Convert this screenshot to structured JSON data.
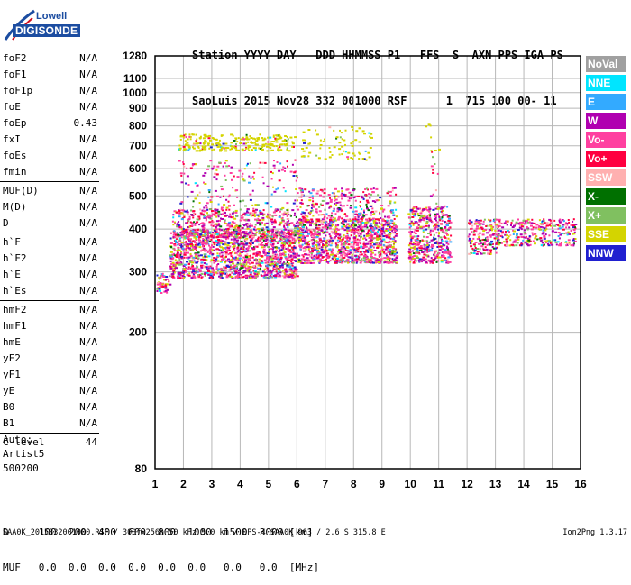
{
  "logo": {
    "line1": "Lowell",
    "line2": "DIGISONDE"
  },
  "header": {
    "line1": "Station YYYY DAY   DDD HHMMSS P1   FFS  S  AXN PPS IGA PS",
    "line2": "SaoLuis 2015 Nov28 332 001000 RSF      1  715 100 00- 11"
  },
  "params": {
    "group1": [
      {
        "name": "foF2",
        "value": "N/A"
      },
      {
        "name": "foF1",
        "value": "N/A"
      },
      {
        "name": "foF1p",
        "value": "N/A"
      },
      {
        "name": "foE",
        "value": "N/A"
      },
      {
        "name": "foEp",
        "value": "0.43"
      },
      {
        "name": "fxI",
        "value": "N/A"
      },
      {
        "name": "foEs",
        "value": "N/A"
      },
      {
        "name": "fmin",
        "value": "N/A"
      }
    ],
    "group2": [
      {
        "name": "MUF(D)",
        "value": "N/A"
      },
      {
        "name": "M(D)",
        "value": "N/A"
      },
      {
        "name": "D",
        "value": "N/A"
      }
    ],
    "group3": [
      {
        "name": "h`F",
        "value": "N/A"
      },
      {
        "name": "h`F2",
        "value": "N/A"
      },
      {
        "name": "h`E",
        "value": "N/A"
      },
      {
        "name": "h`Es",
        "value": "N/A"
      }
    ],
    "group4": [
      {
        "name": "hmF2",
        "value": "N/A"
      },
      {
        "name": "hmF1",
        "value": "N/A"
      },
      {
        "name": "hmE",
        "value": "N/A"
      },
      {
        "name": "yF2",
        "value": "N/A"
      },
      {
        "name": "yF1",
        "value": "N/A"
      },
      {
        "name": "yE",
        "value": "N/A"
      },
      {
        "name": "B0",
        "value": "N/A"
      },
      {
        "name": "B1",
        "value": "N/A"
      }
    ],
    "group5": [
      {
        "name": "C-level",
        "value": "44"
      }
    ]
  },
  "auto": {
    "label": "Auto:",
    "artist": "Artist5",
    "code": "500200"
  },
  "bottom": {
    "d_row": "D     100  200  400  600  800  1000  1500  3000 [km]",
    "muf_row": "MUF   0.0  0.0  0.0  0.0  0.0  0.0   0.0   0.0  [MHz]"
  },
  "footer": "SAA0K_2015332001000.RSF / 300fx256h 50 kHz 5.0 km / DPS-4 SAA0K 903 / 2.6 S 315.8 E",
  "version": "Ion2Png 1.3.17",
  "legend": [
    {
      "label": "NoVal",
      "color": "#a0a0a0"
    },
    {
      "label": "NNE",
      "color": "#00e5ff"
    },
    {
      "label": "E",
      "color": "#33aaff"
    },
    {
      "label": "W",
      "color": "#b000b0"
    },
    {
      "label": "Vo-",
      "color": "#ff40a0"
    },
    {
      "label": "Vo+",
      "color": "#ff0040"
    },
    {
      "label": "SSW",
      "color": "#ffb0b0"
    },
    {
      "label": "X-",
      "color": "#007000"
    },
    {
      "label": "X+",
      "color": "#80c060"
    },
    {
      "label": "SSE",
      "color": "#d4d400"
    },
    {
      "label": "NNW",
      "color": "#2020d0"
    }
  ],
  "chart_data": {
    "type": "scatter",
    "xlim": [
      1,
      16
    ],
    "ylim": [
      80,
      1280
    ],
    "y_scale": "log",
    "x_ticks": [
      1,
      2,
      3,
      4,
      5,
      6,
      7,
      8,
      9,
      10,
      11,
      12,
      13,
      14,
      15,
      16
    ],
    "y_ticks": [
      80,
      200,
      300,
      400,
      500,
      600,
      700,
      800,
      900,
      1000,
      1100,
      1280
    ],
    "grid": true,
    "clusters": [
      {
        "x0": 1.0,
        "x1": 1.5,
        "y0": 262,
        "y1": 300,
        "n": 50
      },
      {
        "x0": 1.5,
        "x1": 6.0,
        "y0": 290,
        "y1": 400,
        "n": 1500
      },
      {
        "x0": 1.6,
        "x1": 6.0,
        "y0": 380,
        "y1": 460,
        "n": 500
      },
      {
        "x0": 1.8,
        "x1": 6.0,
        "y0": 440,
        "y1": 640,
        "n": 200
      },
      {
        "x0": 1.8,
        "x1": 5.9,
        "y0": 680,
        "y1": 760,
        "n": 260
      },
      {
        "x0": 6.0,
        "x1": 9.5,
        "y0": 320,
        "y1": 430,
        "n": 1100
      },
      {
        "x0": 6.0,
        "x1": 9.5,
        "y0": 420,
        "y1": 530,
        "n": 300
      },
      {
        "x0": 6.1,
        "x1": 8.6,
        "y0": 640,
        "y1": 800,
        "n": 80
      },
      {
        "x0": 9.9,
        "x1": 11.4,
        "y0": 320,
        "y1": 470,
        "n": 450
      },
      {
        "x0": 10.5,
        "x1": 11.0,
        "y0": 470,
        "y1": 830,
        "n": 18
      },
      {
        "x0": 12.0,
        "x1": 13.1,
        "y0": 340,
        "y1": 430,
        "n": 160
      },
      {
        "x0": 13.0,
        "x1": 15.8,
        "y0": 360,
        "y1": 430,
        "n": 300
      }
    ]
  }
}
